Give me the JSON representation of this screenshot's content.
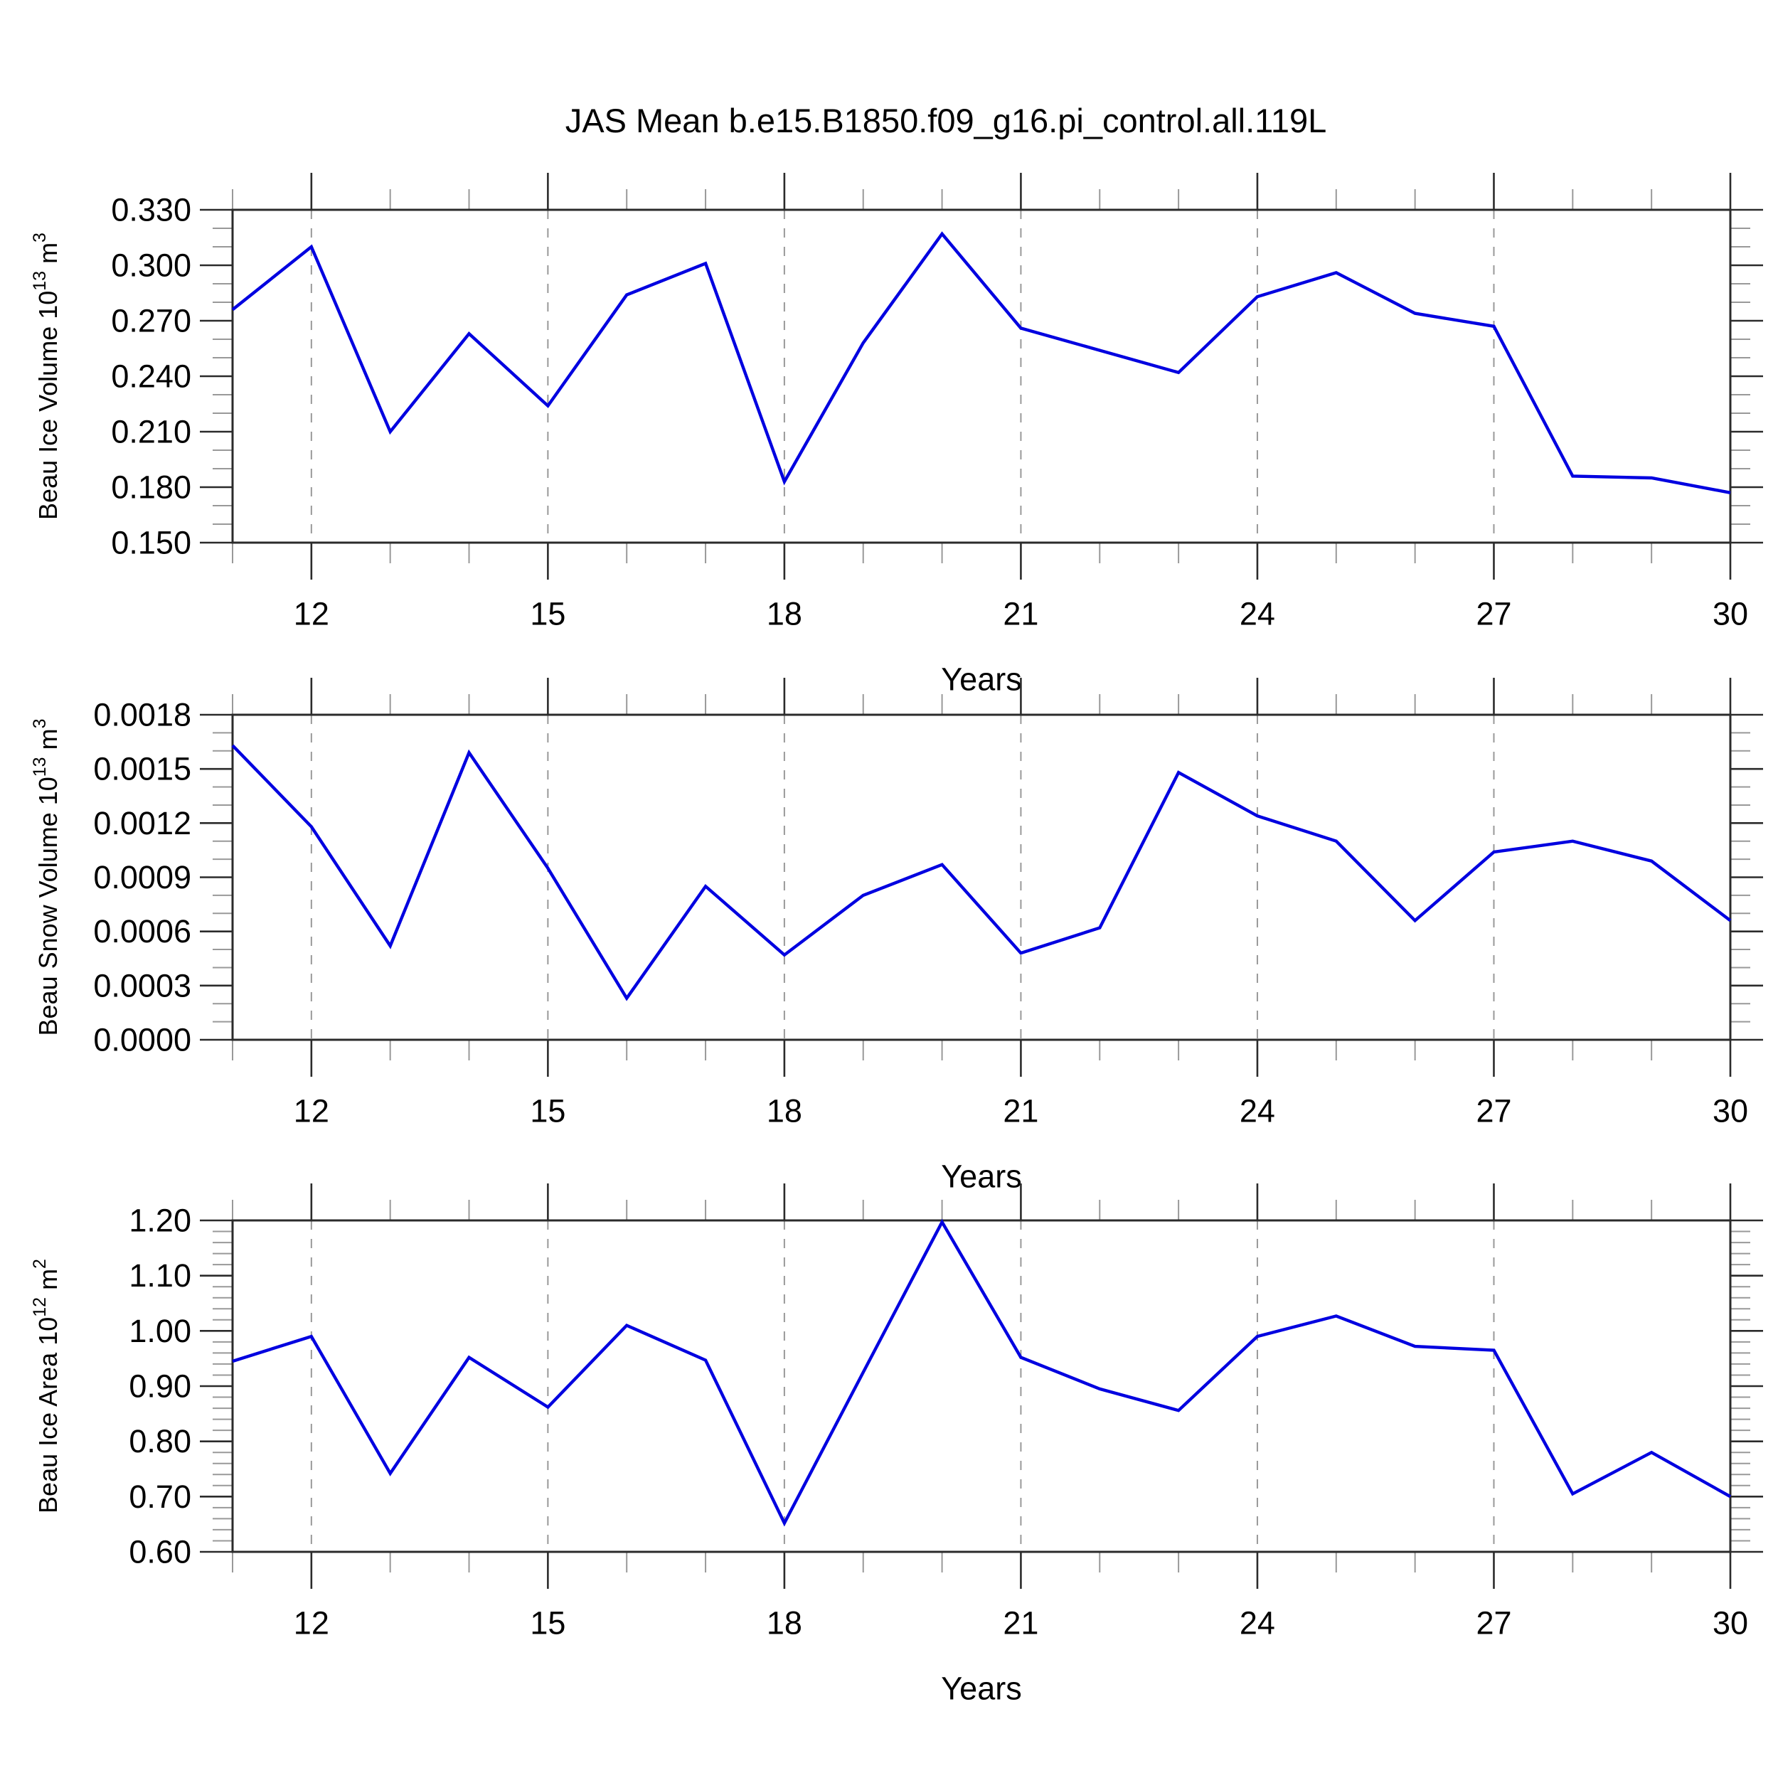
{
  "title": "JAS Mean b.e15.B1850.f09_g16.pi_control.all.119L",
  "colors": {
    "line": "#0000e0",
    "grid": "#999999",
    "frame": "#2b2b2b",
    "major_tick": "#2b2b2b",
    "minor_tick": "#999999",
    "text": "#000000"
  },
  "chart_data": [
    {
      "type": "line",
      "name": "ice-volume",
      "ylabel_parts": [
        {
          "t": "Beau Ice Volume 10"
        },
        {
          "t": "13",
          "sup": true
        },
        {
          "t": " m"
        },
        {
          "t": "3",
          "sup": true
        }
      ],
      "xlabel": "Years",
      "x": [
        11,
        12,
        13,
        14,
        15,
        16,
        17,
        18,
        19,
        20,
        21,
        22,
        23,
        24,
        25,
        26,
        27,
        28,
        29,
        30
      ],
      "values": [
        0.276,
        0.31,
        0.21,
        0.263,
        0.224,
        0.284,
        0.301,
        0.183,
        0.258,
        0.317,
        0.266,
        0.254,
        0.242,
        0.283,
        0.296,
        0.274,
        0.267,
        0.186,
        0.185,
        0.177
      ],
      "xlim": [
        11,
        30
      ],
      "ylim": [
        0.15,
        0.33
      ],
      "yticks": [
        {
          "v": 0.15,
          "label": "0.150"
        },
        {
          "v": 0.18,
          "label": "0.180"
        },
        {
          "v": 0.21,
          "label": "0.210"
        },
        {
          "v": 0.24,
          "label": "0.240"
        },
        {
          "v": 0.27,
          "label": "0.270"
        },
        {
          "v": 0.3,
          "label": "0.300"
        },
        {
          "v": 0.33,
          "label": "0.330"
        }
      ],
      "ytick_minor_step": 0.01,
      "xticks": [
        {
          "v": 12,
          "label": "12"
        },
        {
          "v": 15,
          "label": "15"
        },
        {
          "v": 18,
          "label": "18"
        },
        {
          "v": 21,
          "label": "21"
        },
        {
          "v": 24,
          "label": "24"
        },
        {
          "v": 27,
          "label": "27"
        },
        {
          "v": 30,
          "label": "30"
        }
      ],
      "xtick_minor_step": 1,
      "grid_x": [
        12,
        15,
        18,
        21,
        24,
        27
      ],
      "grid_on": true,
      "legend": "none"
    },
    {
      "type": "line",
      "name": "snow-volume",
      "ylabel_parts": [
        {
          "t": "Beau Snow Volume 10"
        },
        {
          "t": "13",
          "sup": true
        },
        {
          "t": " m"
        },
        {
          "t": "3",
          "sup": true
        }
      ],
      "xlabel": "Years",
      "x": [
        11,
        12,
        13,
        14,
        15,
        16,
        17,
        18,
        19,
        20,
        21,
        22,
        23,
        24,
        25,
        26,
        27,
        28,
        29,
        30
      ],
      "values": [
        0.00163,
        0.00118,
        0.00052,
        0.00159,
        0.00095,
        0.00023,
        0.00085,
        0.00047,
        0.0008,
        0.00097,
        0.00048,
        0.00062,
        0.00148,
        0.00124,
        0.0011,
        0.00066,
        0.00104,
        0.0011,
        0.00099,
        0.00066
      ],
      "xlim": [
        11,
        30
      ],
      "ylim": [
        0.0,
        0.0018
      ],
      "yticks": [
        {
          "v": 0.0,
          "label": "0.0000"
        },
        {
          "v": 0.0003,
          "label": "0.0003"
        },
        {
          "v": 0.0006,
          "label": "0.0006"
        },
        {
          "v": 0.0009,
          "label": "0.0009"
        },
        {
          "v": 0.0012,
          "label": "0.0012"
        },
        {
          "v": 0.0015,
          "label": "0.0015"
        },
        {
          "v": 0.0018,
          "label": "0.0018"
        }
      ],
      "ytick_minor_step": 0.0001,
      "xticks": [
        {
          "v": 12,
          "label": "12"
        },
        {
          "v": 15,
          "label": "15"
        },
        {
          "v": 18,
          "label": "18"
        },
        {
          "v": 21,
          "label": "21"
        },
        {
          "v": 24,
          "label": "24"
        },
        {
          "v": 27,
          "label": "27"
        },
        {
          "v": 30,
          "label": "30"
        }
      ],
      "xtick_minor_step": 1,
      "grid_x": [
        12,
        15,
        18,
        21,
        24,
        27
      ],
      "grid_on": true,
      "legend": "none"
    },
    {
      "type": "line",
      "name": "ice-area",
      "ylabel_parts": [
        {
          "t": "Beau Ice Area 10"
        },
        {
          "t": "12",
          "sup": true
        },
        {
          "t": " m"
        },
        {
          "t": "2",
          "sup": true
        }
      ],
      "xlabel": "Years",
      "x": [
        11,
        12,
        13,
        14,
        15,
        16,
        17,
        18,
        19,
        20,
        21,
        22,
        23,
        24,
        25,
        26,
        27,
        28,
        29,
        30
      ],
      "values": [
        0.945,
        0.99,
        0.742,
        0.952,
        0.862,
        1.01,
        0.947,
        0.652,
        0.925,
        1.197,
        0.952,
        0.895,
        0.856,
        0.99,
        1.027,
        0.972,
        0.965,
        0.705,
        0.78,
        0.7
      ],
      "xlim": [
        11,
        30
      ],
      "ylim": [
        0.6,
        1.2
      ],
      "yticks": [
        {
          "v": 0.6,
          "label": "0.60"
        },
        {
          "v": 0.7,
          "label": "0.70"
        },
        {
          "v": 0.8,
          "label": "0.80"
        },
        {
          "v": 0.9,
          "label": "0.90"
        },
        {
          "v": 1.0,
          "label": "1.00"
        },
        {
          "v": 1.1,
          "label": "1.10"
        },
        {
          "v": 1.2,
          "label": "1.20"
        }
      ],
      "ytick_minor_step": 0.02,
      "xticks": [
        {
          "v": 12,
          "label": "12"
        },
        {
          "v": 15,
          "label": "15"
        },
        {
          "v": 18,
          "label": "18"
        },
        {
          "v": 21,
          "label": "21"
        },
        {
          "v": 24,
          "label": "24"
        },
        {
          "v": 27,
          "label": "27"
        },
        {
          "v": 30,
          "label": "30"
        }
      ],
      "xtick_minor_step": 1,
      "grid_x": [
        12,
        15,
        18,
        21,
        24,
        27
      ],
      "grid_on": true,
      "legend": "none"
    }
  ]
}
